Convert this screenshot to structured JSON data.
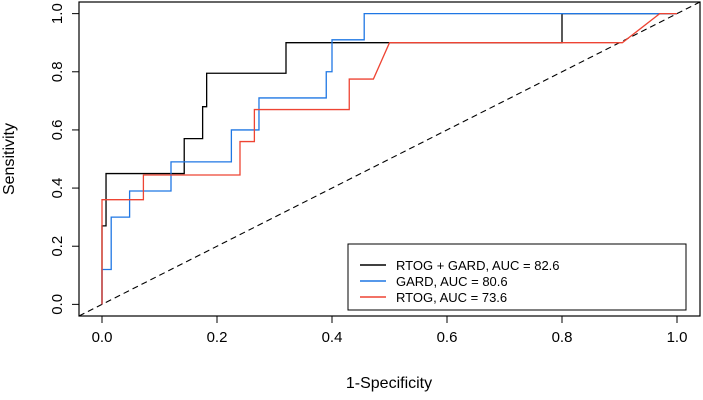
{
  "chart_data": {
    "type": "line",
    "title": "",
    "xlabel": "1-Specificity",
    "ylabel": "Sensitivity",
    "xlim": [
      -0.04,
      1.04
    ],
    "ylim": [
      -0.04,
      1.04
    ],
    "xticks": [
      0.0,
      0.2,
      0.4,
      0.6,
      0.8,
      1.0
    ],
    "xtick_labels": [
      "0.0",
      "0.2",
      "0.4",
      "0.6",
      "0.8",
      "1.0"
    ],
    "yticks": [
      0.0,
      0.2,
      0.4,
      0.6,
      0.8,
      1.0
    ],
    "ytick_labels": [
      "0.0",
      "0.2",
      "0.4",
      "0.6",
      "0.8",
      "1.0"
    ],
    "grid": false,
    "legend_position": "bottom-right",
    "series": [
      {
        "name": "RTOG + GARD, AUC = 82.6",
        "color": "#000000",
        "points": [
          [
            0,
            0
          ],
          [
            0,
            0.27
          ],
          [
            0.007,
            0.27
          ],
          [
            0.007,
            0.45
          ],
          [
            0.143,
            0.45
          ],
          [
            0.143,
            0.57
          ],
          [
            0.175,
            0.57
          ],
          [
            0.175,
            0.68
          ],
          [
            0.182,
            0.68
          ],
          [
            0.182,
            0.795
          ],
          [
            0.32,
            0.795
          ],
          [
            0.32,
            0.9
          ],
          [
            0.8,
            0.9
          ],
          [
            0.8,
            1.0
          ],
          [
            1.0,
            1.0
          ]
        ]
      },
      {
        "name": "GARD, AUC = 80.6",
        "color": "#1f77e4",
        "points": [
          [
            0,
            0
          ],
          [
            0,
            0.12
          ],
          [
            0.016,
            0.12
          ],
          [
            0.016,
            0.3
          ],
          [
            0.048,
            0.3
          ],
          [
            0.048,
            0.39
          ],
          [
            0.12,
            0.39
          ],
          [
            0.12,
            0.49
          ],
          [
            0.225,
            0.49
          ],
          [
            0.225,
            0.6
          ],
          [
            0.273,
            0.6
          ],
          [
            0.273,
            0.71
          ],
          [
            0.39,
            0.71
          ],
          [
            0.39,
            0.8
          ],
          [
            0.4,
            0.8
          ],
          [
            0.4,
            0.91
          ],
          [
            0.456,
            0.91
          ],
          [
            0.456,
            1.0
          ],
          [
            1.0,
            1.0
          ]
        ]
      },
      {
        "name": "RTOG, AUC = 73.6",
        "color": "#ee4433",
        "points": [
          [
            0,
            0
          ],
          [
            0,
            0.36
          ],
          [
            0.072,
            0.36
          ],
          [
            0.072,
            0.445
          ],
          [
            0.24,
            0.445
          ],
          [
            0.24,
            0.56
          ],
          [
            0.265,
            0.56
          ],
          [
            0.265,
            0.67
          ],
          [
            0.43,
            0.67
          ],
          [
            0.43,
            0.775
          ],
          [
            0.472,
            0.775
          ],
          [
            0.5,
            0.9
          ],
          [
            0.8,
            0.9
          ],
          [
            0.905,
            0.9
          ],
          [
            0.97,
            1.0
          ],
          [
            1.0,
            1.0
          ]
        ]
      }
    ],
    "reference_line": {
      "name": "diagonal",
      "color": "#000000",
      "style": "dashed",
      "points": [
        [
          -0.04,
          -0.04
        ],
        [
          1.04,
          1.04
        ]
      ]
    }
  }
}
